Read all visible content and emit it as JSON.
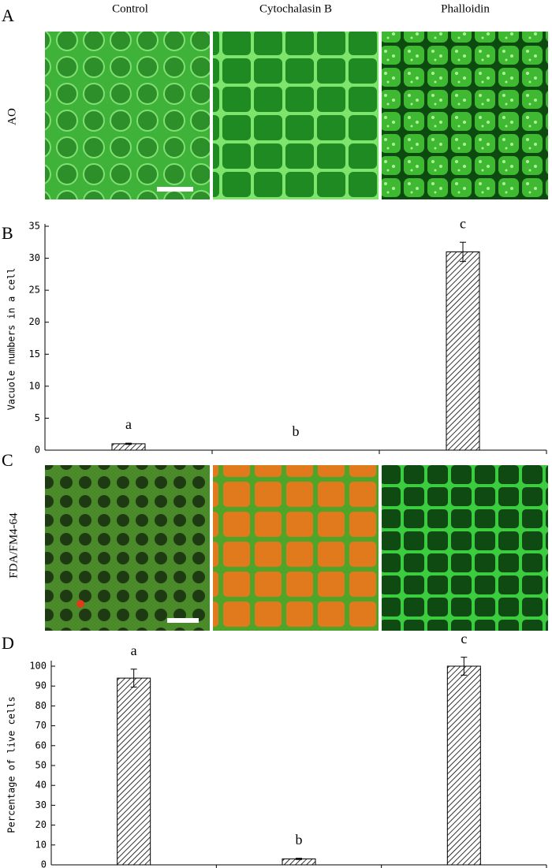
{
  "columns": [
    "Control",
    "Cytochalasin B",
    "Phalloidin"
  ],
  "panels": {
    "a": "A",
    "b": "B",
    "c": "C",
    "d": "D"
  },
  "row_labels": {
    "a": "AO",
    "c": "FDA/FM4-64"
  },
  "chart_data": [
    {
      "type": "bar",
      "ylabel": "Vacuole numbers in a cell",
      "categories": [
        null,
        null,
        null
      ],
      "values": [
        1,
        0,
        31
      ],
      "errors": [
        0.1,
        0,
        1.5
      ],
      "annotations": [
        "a",
        "b",
        "c"
      ],
      "color": "#000000",
      "ylim": [
        0,
        35
      ],
      "yticks": [
        0,
        5,
        10,
        15,
        20,
        25,
        30,
        35
      ]
    },
    {
      "type": "bar",
      "ylabel": "Percentage of live cells",
      "categories": [
        null,
        null,
        null
      ],
      "values": [
        94,
        3,
        100
      ],
      "errors": [
        4.5,
        0.3,
        4.5
      ],
      "annotations": [
        "a",
        "b",
        "c"
      ],
      "color": "#000000",
      "ylim": [
        0,
        100
      ],
      "yticks": [
        0,
        10,
        20,
        30,
        40,
        50,
        60,
        70,
        80,
        90,
        100
      ]
    }
  ]
}
